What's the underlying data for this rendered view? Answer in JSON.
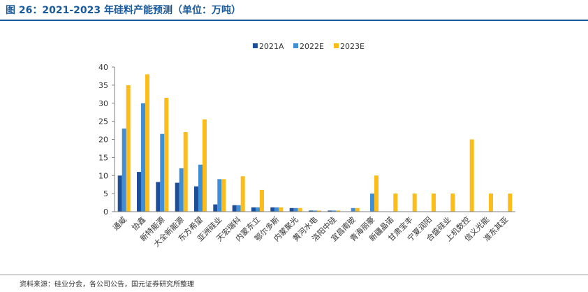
{
  "figure": {
    "title": "图 26：2021-2023 年硅料产能预测（单位：万吨）",
    "source": "资料来源：硅业分会，各公司公告，国元证券研究所整理"
  },
  "colors": {
    "title": "#1a5a99",
    "series": [
      "#1f4e99",
      "#3f8fd6",
      "#fbbc1c"
    ]
  },
  "chart_data": {
    "type": "bar",
    "title": "",
    "xlabel": "",
    "ylabel": "",
    "ylim": [
      0,
      40
    ],
    "yticks": [
      0,
      5,
      10,
      15,
      20,
      25,
      30,
      35,
      40
    ],
    "grid": false,
    "legend_position": "top-center",
    "categories": [
      "通威",
      "协鑫",
      "新特能源",
      "大全新能源",
      "东方希望",
      "亚洲硅业",
      "天宏瑞科",
      "内蒙东立",
      "鄂尔多斯",
      "内蒙聚光",
      "黄河水电",
      "洛阳中硅",
      "宜昌南玻",
      "青海丽豪",
      "新疆晶诺",
      "甘肃宝丰",
      "宁夏润阳",
      "合盛硅业",
      "上机数控",
      "信义光能",
      "准东其亚"
    ],
    "series": [
      {
        "name": "2021A",
        "values": [
          10,
          11,
          8.2,
          8,
          7,
          2,
          1.8,
          1.2,
          1.2,
          1,
          0.3,
          0.3,
          0,
          0,
          0,
          0,
          0,
          0,
          0,
          0,
          0
        ]
      },
      {
        "name": "2022E",
        "values": [
          23,
          30,
          21.5,
          12,
          13,
          9,
          1.8,
          1.2,
          1.2,
          1,
          0.3,
          0.3,
          1,
          5,
          0,
          0,
          0,
          0,
          0,
          0,
          0
        ]
      },
      {
        "name": "2023E",
        "values": [
          35,
          38,
          31.5,
          22,
          25.5,
          9,
          9.8,
          6,
          1.2,
          1,
          0.3,
          0.3,
          1,
          10,
          5,
          5,
          5,
          5,
          20,
          5,
          5
        ]
      }
    ]
  }
}
